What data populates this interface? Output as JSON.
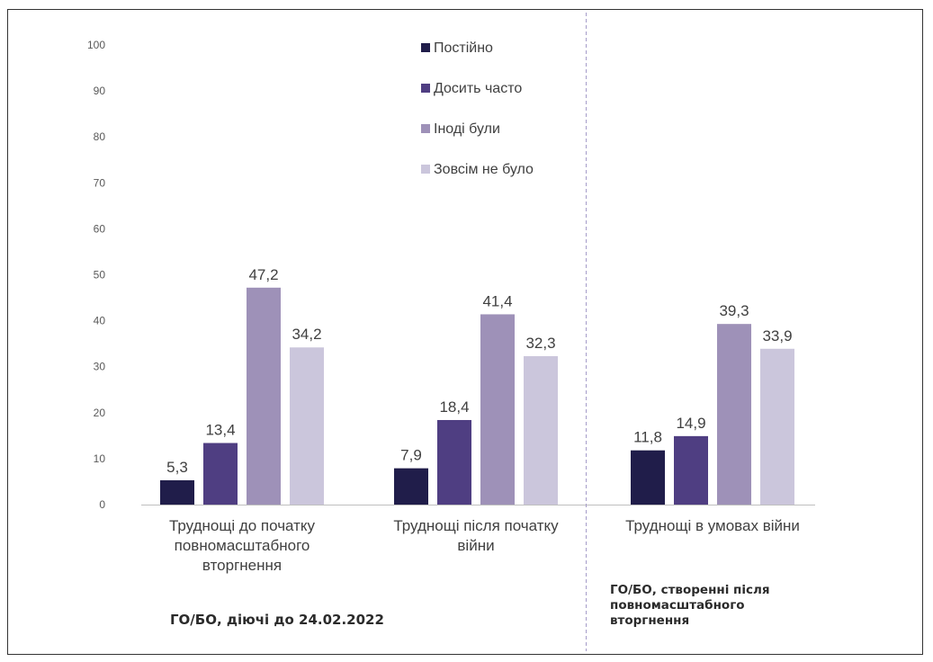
{
  "chart_data": {
    "type": "bar",
    "categories": [
      [
        "Труднощі до початку",
        "повномасштабного",
        "вторгнення"
      ],
      [
        "Труднощі після початку",
        "війни"
      ],
      [
        "Труднощі в умовах війни"
      ]
    ],
    "series": [
      {
        "name": "Постійно",
        "color": "#201d4a",
        "values": [
          5.3,
          7.9,
          11.8
        ],
        "labels": [
          "5,3",
          "7,9",
          "11,8"
        ]
      },
      {
        "name": "Досить часто",
        "color": "#4f3e82",
        "values": [
          13.4,
          18.4,
          14.9
        ],
        "labels": [
          "13,4",
          "18,4",
          "14,9"
        ]
      },
      {
        "name": "Іноді були",
        "color": "#9e91b8",
        "values": [
          47.2,
          41.4,
          39.3
        ],
        "labels": [
          "47,2",
          "41,4",
          "39,3"
        ]
      },
      {
        "name": "Зовсім не було",
        "color": "#cbc6dc",
        "values": [
          34.2,
          32.3,
          33.9
        ],
        "labels": [
          "34,2",
          "32,3",
          "33,9"
        ]
      }
    ],
    "yticks": [
      0,
      10,
      20,
      30,
      40,
      50,
      60,
      70,
      80,
      90,
      100
    ],
    "ylim": [
      0,
      100
    ],
    "legend_position": "top-center",
    "grid": false,
    "title": "",
    "xlabel": "",
    "ylabel": ""
  },
  "notes": {
    "left": "ГО/БО, діючі до 24.02.2022",
    "right": [
      "ГО/БО, створенні після",
      "повномасштабного",
      "вторгнення"
    ]
  }
}
